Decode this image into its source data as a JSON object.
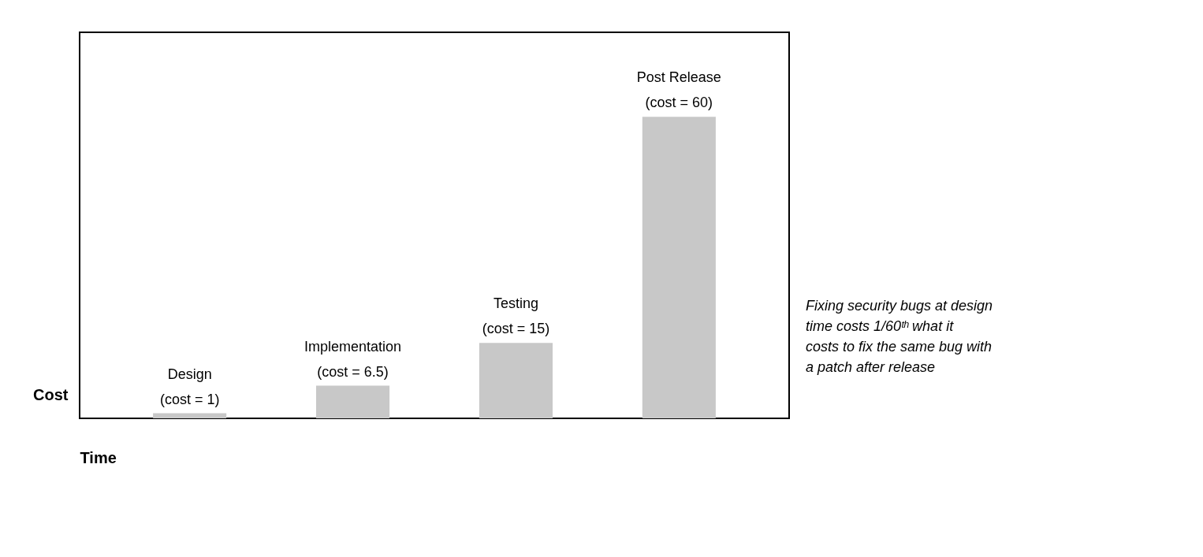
{
  "chart_data": {
    "type": "bar",
    "xlabel": "Time",
    "ylabel": "Cost",
    "categories": [
      "Design",
      "Implementation",
      "Testing",
      "Post Release"
    ],
    "values": [
      1,
      6.5,
      15,
      60
    ],
    "value_labels": [
      "(cost = 1)",
      "(cost = 6.5)",
      "(cost = 15)",
      "(cost = 60)"
    ],
    "color": "#c8c8c8",
    "annotations": [
      "Fixing security bugs at design time costs 1/60ᵗʰ what it costs to fix the same bug with a patch after release"
    ]
  }
}
